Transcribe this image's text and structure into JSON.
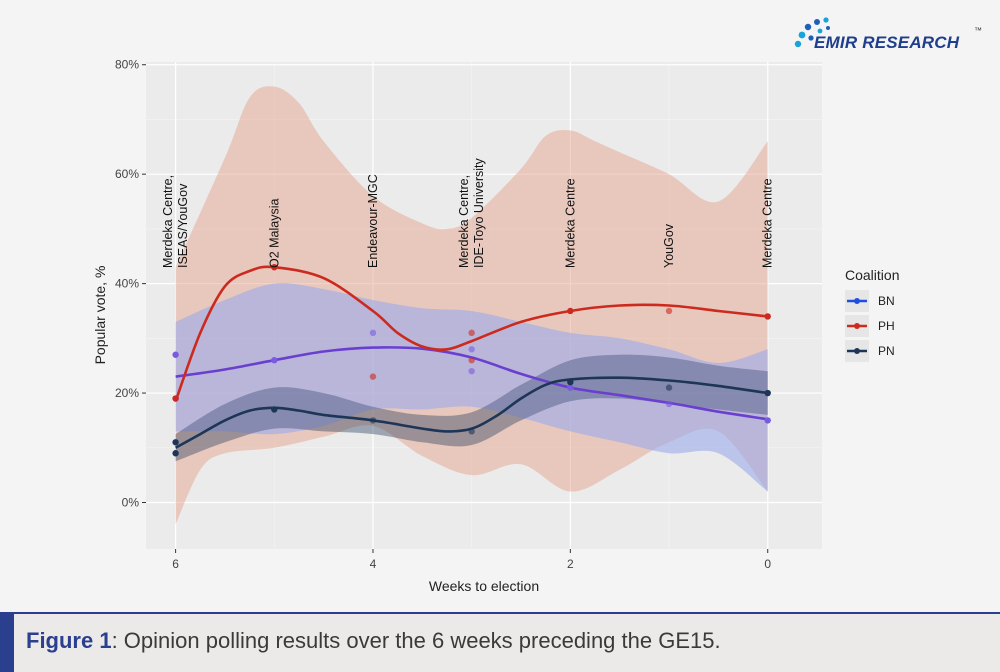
{
  "logo": {
    "text": "EMIR RESEARCH",
    "tm": "™"
  },
  "caption": {
    "label": "Figure 1",
    "text": ": Opinion polling results over the 6 weeks preceding the GE15."
  },
  "colors": {
    "BN": "#1f4fe0",
    "PH": "#cc2a1e",
    "PN": "#1d3557",
    "BN_line": "#6a3fd0",
    "panel": "#ebebeb",
    "brand": "#2b3f8f"
  },
  "chart_data": {
    "type": "line",
    "xlabel": "Weeks to election",
    "ylabel": "Popular vote, %",
    "x_reversed": true,
    "xlim": [
      6.3,
      -0.55
    ],
    "ylim": [
      -8.5,
      80.5
    ],
    "x_ticks": [
      6,
      4,
      2,
      0
    ],
    "y_ticks": [
      {
        "value": 0,
        "label": "0%"
      },
      {
        "value": 20,
        "label": "20%"
      },
      {
        "value": 40,
        "label": "40%"
      },
      {
        "value": 60,
        "label": "60%"
      },
      {
        "value": 80,
        "label": "80%"
      }
    ],
    "grid": true,
    "legend": {
      "title": "Coalition",
      "position": "right",
      "entries": [
        "BN",
        "PH",
        "PN"
      ]
    },
    "pollsters": [
      {
        "x": 6,
        "lines": [
          "Merdeka Centre,",
          "ISEAS/YouGov"
        ]
      },
      {
        "x": 5,
        "lines": [
          "O2 Malaysia"
        ]
      },
      {
        "x": 4,
        "lines": [
          "Endeavour-MGC"
        ]
      },
      {
        "x": 3,
        "lines": [
          "Merdeka Centre,",
          "IDE-Toyo University"
        ]
      },
      {
        "x": 2,
        "lines": [
          "Merdeka Centre"
        ]
      },
      {
        "x": 1,
        "lines": [
          "YouGov"
        ]
      },
      {
        "x": 0,
        "lines": [
          "Merdeka Centre"
        ]
      }
    ],
    "series": [
      {
        "name": "BN",
        "points": [
          [
            6,
            27
          ],
          [
            6,
            19
          ],
          [
            5,
            26
          ],
          [
            4,
            31
          ],
          [
            3,
            28
          ],
          [
            3,
            24
          ],
          [
            2,
            21
          ],
          [
            1,
            18
          ],
          [
            0,
            15
          ]
        ],
        "smooth": [
          [
            6,
            23
          ],
          [
            5.5,
            24.3
          ],
          [
            5,
            26
          ],
          [
            4.5,
            27.6
          ],
          [
            4,
            28.3
          ],
          [
            3.5,
            28.1
          ],
          [
            3,
            26.5
          ],
          [
            2.5,
            23.5
          ],
          [
            2,
            21
          ],
          [
            1.5,
            19.6
          ],
          [
            1,
            18.2
          ],
          [
            0.5,
            16.6
          ],
          [
            0,
            15.2
          ]
        ],
        "band_upper": [
          [
            6,
            33
          ],
          [
            5.5,
            37
          ],
          [
            5,
            40
          ],
          [
            4.5,
            39
          ],
          [
            4,
            37
          ],
          [
            3.5,
            35.5
          ],
          [
            3,
            35
          ],
          [
            2.5,
            33
          ],
          [
            2,
            31
          ],
          [
            1.5,
            30
          ],
          [
            1,
            28
          ],
          [
            0.5,
            25.5
          ],
          [
            0,
            28
          ]
        ],
        "band_lower": [
          [
            6,
            13
          ],
          [
            5.5,
            13
          ],
          [
            5,
            12.5
          ],
          [
            4.5,
            14
          ],
          [
            4,
            17
          ],
          [
            3.5,
            17
          ],
          [
            3,
            17.5
          ],
          [
            2.5,
            15.5
          ],
          [
            2,
            13
          ],
          [
            1.5,
            11
          ],
          [
            1,
            9
          ],
          [
            0.5,
            9
          ],
          [
            0,
            2
          ]
        ]
      },
      {
        "name": "PH",
        "points": [
          [
            6,
            19
          ],
          [
            5,
            43
          ],
          [
            4,
            23
          ],
          [
            3,
            31
          ],
          [
            3,
            26
          ],
          [
            2,
            35
          ],
          [
            1,
            35
          ],
          [
            0,
            34
          ]
        ],
        "smooth": [
          [
            6,
            18.5
          ],
          [
            5.75,
            31
          ],
          [
            5.5,
            39.5
          ],
          [
            5.25,
            42.3
          ],
          [
            5,
            43
          ],
          [
            4.5,
            41
          ],
          [
            4,
            35
          ],
          [
            3.75,
            31
          ],
          [
            3.5,
            28.5
          ],
          [
            3.25,
            28
          ],
          [
            3,
            29.5
          ],
          [
            2.5,
            33
          ],
          [
            2,
            35
          ],
          [
            1.5,
            36
          ],
          [
            1,
            36
          ],
          [
            0.5,
            35
          ],
          [
            0,
            34
          ]
        ],
        "band_upper": [
          [
            6,
            43
          ],
          [
            5.5,
            63
          ],
          [
            5.25,
            74
          ],
          [
            5,
            76
          ],
          [
            4.75,
            73
          ],
          [
            4.5,
            66
          ],
          [
            4,
            56
          ],
          [
            3.5,
            51
          ],
          [
            3.25,
            50
          ],
          [
            3,
            52
          ],
          [
            2.5,
            61
          ],
          [
            2.25,
            67
          ],
          [
            2,
            68
          ],
          [
            1.75,
            66
          ],
          [
            1.5,
            64
          ],
          [
            1,
            60
          ],
          [
            0.5,
            55
          ],
          [
            0,
            66
          ]
        ],
        "band_lower": [
          [
            6,
            -4
          ],
          [
            5.75,
            6
          ],
          [
            5.5,
            9
          ],
          [
            5,
            10
          ],
          [
            4.5,
            12
          ],
          [
            4,
            14
          ],
          [
            3.5,
            8.5
          ],
          [
            3,
            5
          ],
          [
            2.5,
            7
          ],
          [
            2,
            2
          ],
          [
            1.5,
            6
          ],
          [
            1,
            11
          ],
          [
            0.5,
            13
          ],
          [
            0,
            2
          ]
        ]
      },
      {
        "name": "PN",
        "points": [
          [
            6,
            11
          ],
          [
            6,
            9
          ],
          [
            5,
            17
          ],
          [
            4,
            15
          ],
          [
            3,
            13
          ],
          [
            2,
            22
          ],
          [
            1,
            21
          ],
          [
            0,
            20
          ]
        ],
        "smooth": [
          [
            6,
            10
          ],
          [
            5.75,
            12.5
          ],
          [
            5.5,
            15
          ],
          [
            5.25,
            16.8
          ],
          [
            5,
            17.3
          ],
          [
            4.75,
            16.8
          ],
          [
            4.5,
            16
          ],
          [
            4,
            15
          ],
          [
            3.5,
            13.5
          ],
          [
            3.25,
            13
          ],
          [
            3,
            13.5
          ],
          [
            2.75,
            15.8
          ],
          [
            2.5,
            19
          ],
          [
            2.25,
            21.5
          ],
          [
            2,
            22.5
          ],
          [
            1.5,
            22.8
          ],
          [
            1,
            22.3
          ],
          [
            0.5,
            21.3
          ],
          [
            0,
            20
          ]
        ],
        "band_upper": [
          [
            6,
            12.5
          ],
          [
            5.5,
            18
          ],
          [
            5,
            21
          ],
          [
            4.5,
            20
          ],
          [
            4,
            17.5
          ],
          [
            3.5,
            16
          ],
          [
            3,
            16.5
          ],
          [
            2.5,
            21.5
          ],
          [
            2,
            26
          ],
          [
            1.5,
            27
          ],
          [
            1,
            26.5
          ],
          [
            0.5,
            25
          ],
          [
            0,
            24
          ]
        ],
        "band_lower": [
          [
            6,
            7.5
          ],
          [
            5.5,
            11
          ],
          [
            5,
            13.5
          ],
          [
            4.5,
            13
          ],
          [
            4,
            12.5
          ],
          [
            3.5,
            11
          ],
          [
            3,
            10.5
          ],
          [
            2.5,
            15
          ],
          [
            2,
            18.5
          ],
          [
            1.5,
            19
          ],
          [
            1,
            18
          ],
          [
            0.5,
            17
          ],
          [
            0,
            16
          ]
        ]
      }
    ]
  }
}
